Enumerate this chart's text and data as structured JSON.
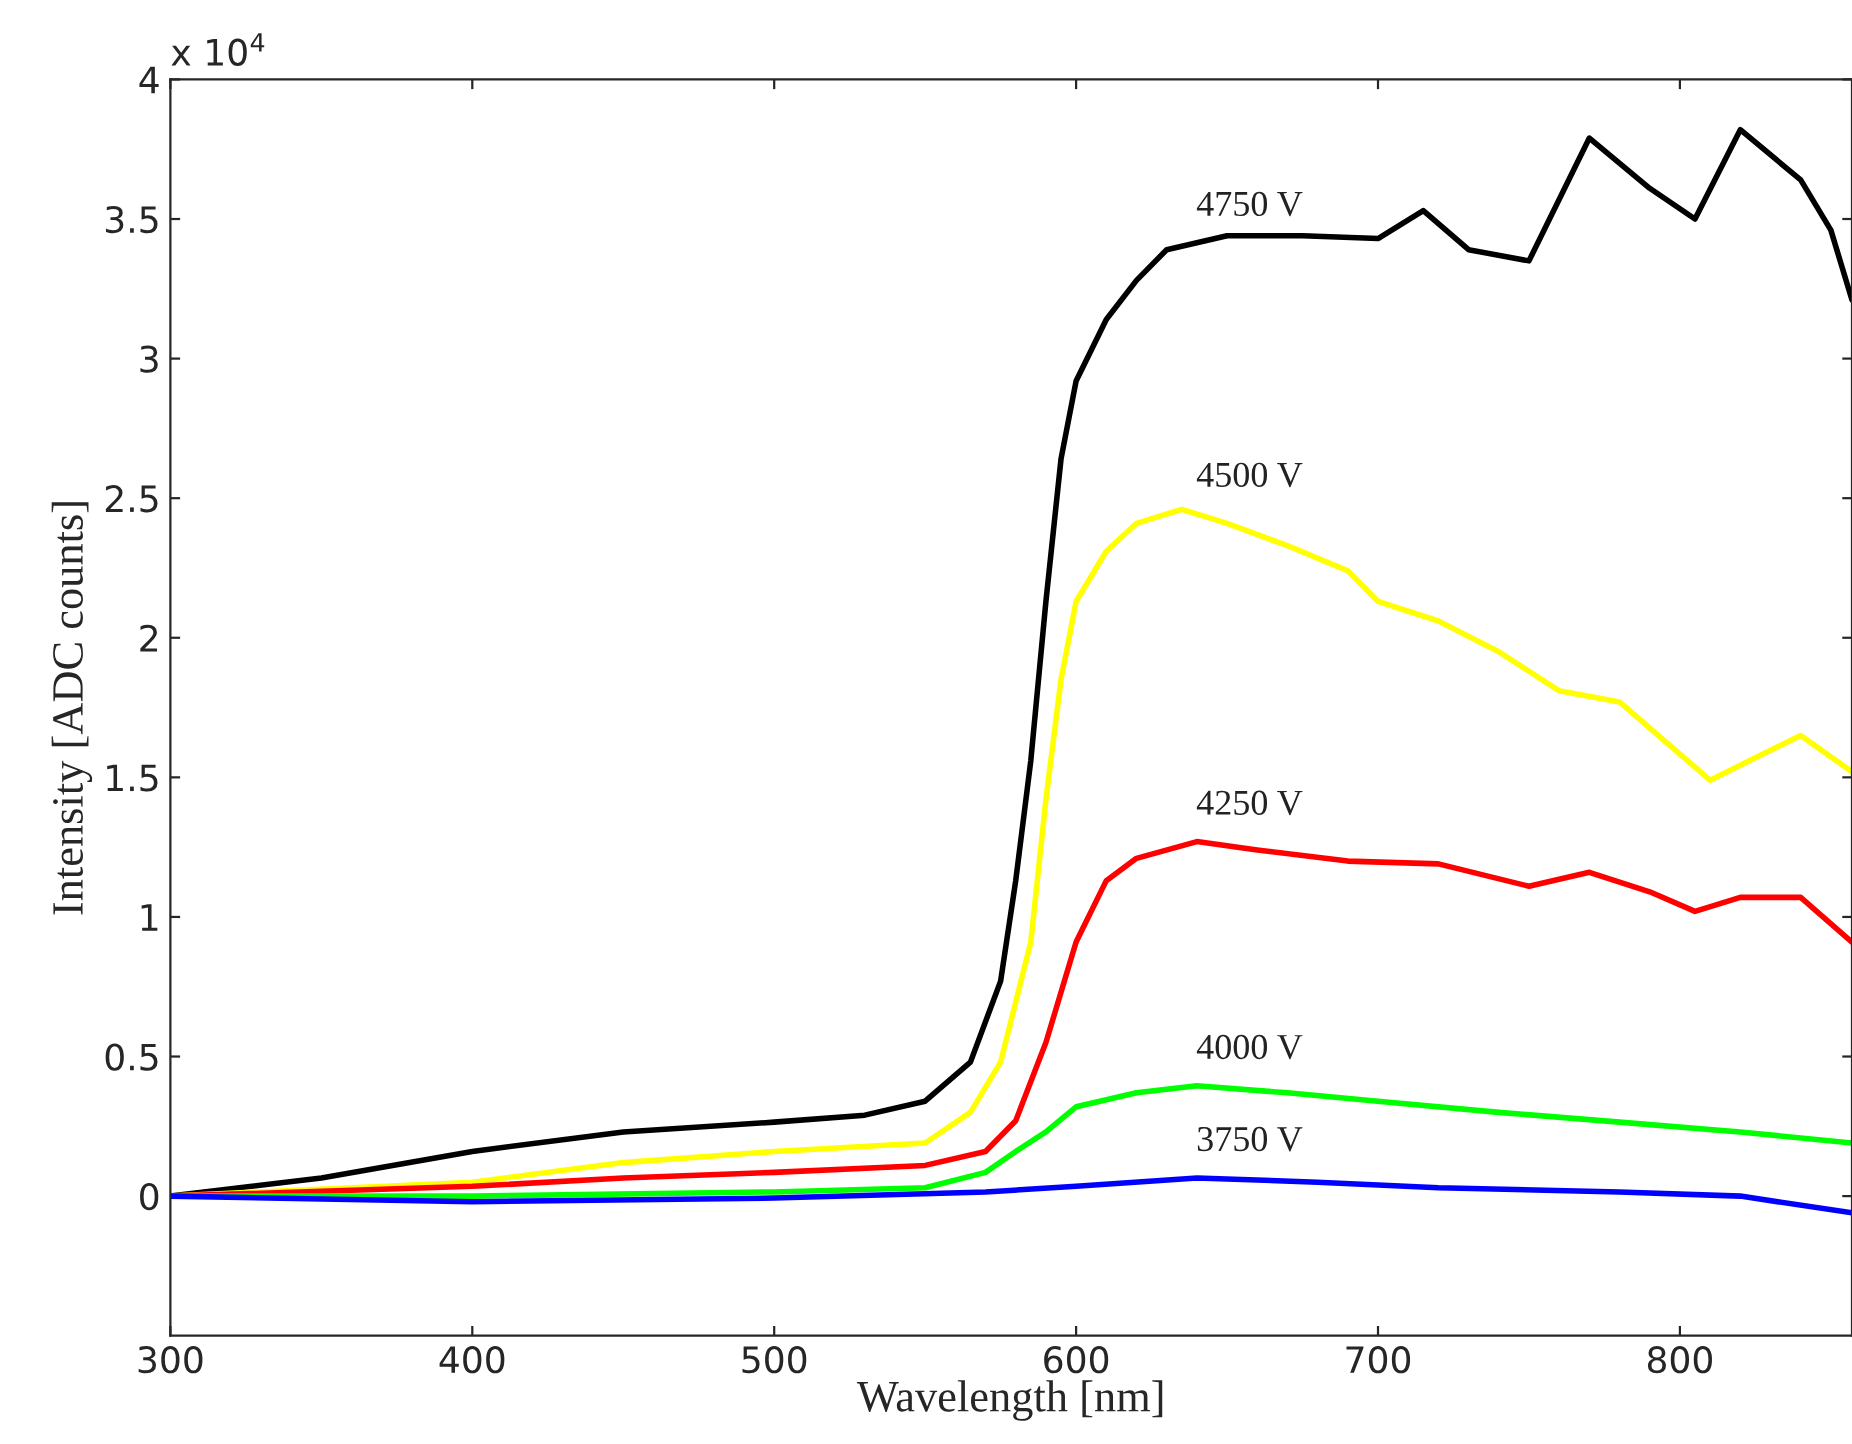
{
  "chart_data": {
    "type": "line",
    "xlabel": "Wavelength [nm]",
    "ylabel": "Intensity [ADC counts]",
    "xlim": [
      300,
      857
    ],
    "xticks": [
      300,
      400,
      500,
      600,
      700,
      800
    ],
    "ylim": [
      -0.5,
      4
    ],
    "yticks": [
      0,
      0.5,
      1,
      1.5,
      2,
      2.5,
      3,
      3.5,
      4
    ],
    "grid": false,
    "legend": false,
    "marker": "none",
    "line_style": "solid",
    "series": [
      {
        "name": "4750 V",
        "color": "#000000",
        "x": [
          300,
          350,
          400,
          450,
          500,
          530,
          550,
          565,
          575,
          580,
          585,
          590,
          595,
          600,
          610,
          620,
          630,
          650,
          675,
          700,
          715,
          730,
          750,
          770,
          790,
          805,
          820,
          840,
          850,
          857
        ],
        "values": [
          0,
          0.065,
          0.16,
          0.23,
          0.265,
          0.29,
          0.34,
          0.48,
          0.77,
          1.13,
          1.56,
          2.13,
          2.64,
          2.92,
          3.14,
          3.28,
          3.39,
          3.44,
          3.44,
          3.43,
          3.53,
          3.39,
          3.35,
          3.79,
          3.61,
          3.5,
          3.82,
          3.64,
          3.46,
          3.21
        ]
      },
      {
        "name": "4500 V",
        "color": "#ffff00",
        "x": [
          300,
          400,
          450,
          500,
          550,
          565,
          575,
          585,
          590,
          595,
          600,
          610,
          620,
          635,
          650,
          670,
          690,
          700,
          720,
          740,
          760,
          780,
          795,
          810,
          825,
          840,
          857
        ],
        "values": [
          0,
          0.05,
          0.12,
          0.16,
          0.19,
          0.3,
          0.48,
          0.91,
          1.42,
          1.85,
          2.13,
          2.31,
          2.41,
          2.46,
          2.41,
          2.33,
          2.24,
          2.13,
          2.06,
          1.95,
          1.81,
          1.77,
          1.63,
          1.49,
          1.57,
          1.65,
          1.52
        ]
      },
      {
        "name": "4250 V",
        "color": "#ff0000",
        "x": [
          300,
          400,
          450,
          500,
          550,
          570,
          580,
          590,
          600,
          610,
          620,
          640,
          660,
          690,
          720,
          750,
          770,
          790,
          805,
          820,
          840,
          857
        ],
        "values": [
          0,
          0.035,
          0.065,
          0.085,
          0.11,
          0.16,
          0.27,
          0.55,
          0.91,
          1.13,
          1.21,
          1.27,
          1.24,
          1.2,
          1.19,
          1.11,
          1.16,
          1.09,
          1.02,
          1.07,
          1.07,
          0.91
        ]
      },
      {
        "name": "4000 V",
        "color": "#00ff00",
        "x": [
          300,
          400,
          500,
          550,
          570,
          580,
          590,
          600,
          620,
          640,
          670,
          700,
          740,
          780,
          820,
          857
        ],
        "values": [
          0,
          0,
          0.015,
          0.03,
          0.085,
          0.16,
          0.23,
          0.32,
          0.37,
          0.395,
          0.37,
          0.34,
          0.3,
          0.265,
          0.23,
          0.19
        ]
      },
      {
        "name": "3750 V",
        "color": "#0000ff",
        "x": [
          300,
          400,
          500,
          570,
          600,
          640,
          680,
          720,
          780,
          820,
          857
        ],
        "values": [
          0,
          -0.02,
          -0.007,
          0.015,
          0.035,
          0.065,
          0.05,
          0.03,
          0.015,
          0,
          -0.06
        ]
      }
    ],
    "annotations": [
      "x 10$^{4}$"
    ]
  }
}
